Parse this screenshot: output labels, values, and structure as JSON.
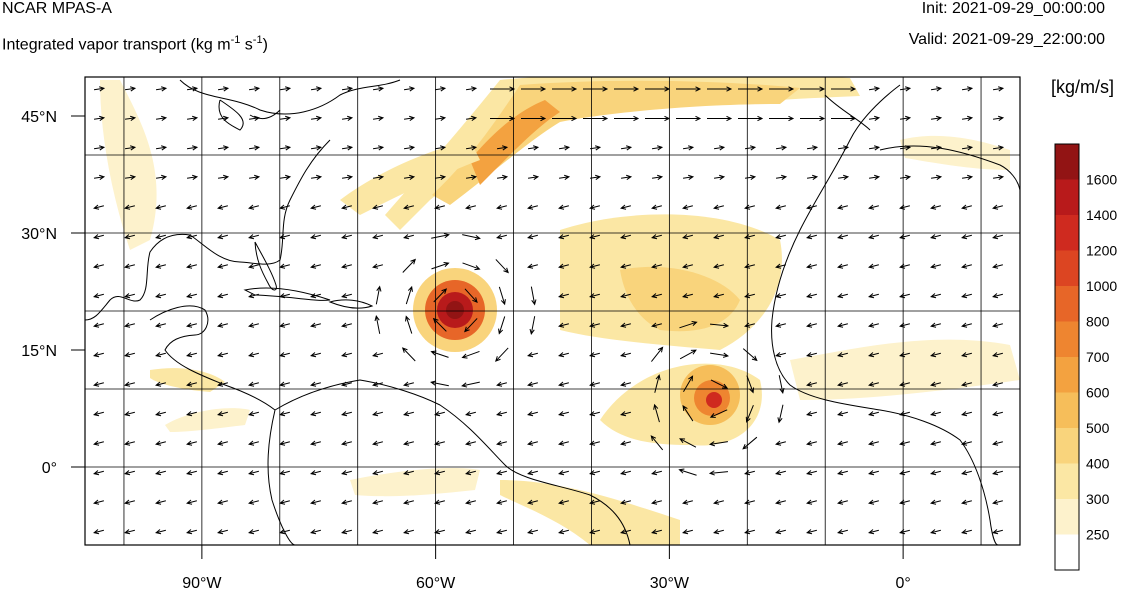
{
  "header": {
    "model": "NCAR MPAS-A",
    "field_main": "Integrated vapor transport (kg m",
    "field_exp1": "-1",
    "field_mid": " s",
    "field_exp2": "-1",
    "field_end": ")",
    "init": "Init: 2021-09-29_00:00:00",
    "valid": "Valid: 2021-09-29_22:00:00"
  },
  "map": {
    "lon_range": [
      -105,
      15
    ],
    "lat_range": [
      -10,
      50
    ],
    "graticule_step_deg": 10,
    "lon_tick_labels": [
      {
        "lon": -90,
        "label": "90°W"
      },
      {
        "lon": -60,
        "label": "60°W"
      },
      {
        "lon": -30,
        "label": "30°W"
      },
      {
        "lon": 0,
        "label": "0°"
      }
    ],
    "lat_tick_labels": [
      {
        "lat": 45,
        "label": "45°N"
      },
      {
        "lat": 30,
        "label": "30°N"
      },
      {
        "lat": 15,
        "label": "15°N"
      },
      {
        "lat": 0,
        "label": "0°"
      }
    ]
  },
  "colorbar": {
    "units": "[kg/m/s]",
    "levels": [
      {
        "label": "250",
        "color": "#fdf2cc"
      },
      {
        "label": "300",
        "color": "#fbe7a4"
      },
      {
        "label": "400",
        "color": "#f9d47c"
      },
      {
        "label": "500",
        "color": "#f6be5a"
      },
      {
        "label": "600",
        "color": "#f3a240"
      },
      {
        "label": "700",
        "color": "#ee8530"
      },
      {
        "label": "800",
        "color": "#e76628"
      },
      {
        "label": "1000",
        "color": "#dc4522"
      },
      {
        "label": "1200",
        "color": "#cf2a1f"
      },
      {
        "label": "1400",
        "color": "#b81a1b"
      },
      {
        "label": "1600",
        "color": "#921414"
      }
    ],
    "below_color": "#ffffff"
  }
}
